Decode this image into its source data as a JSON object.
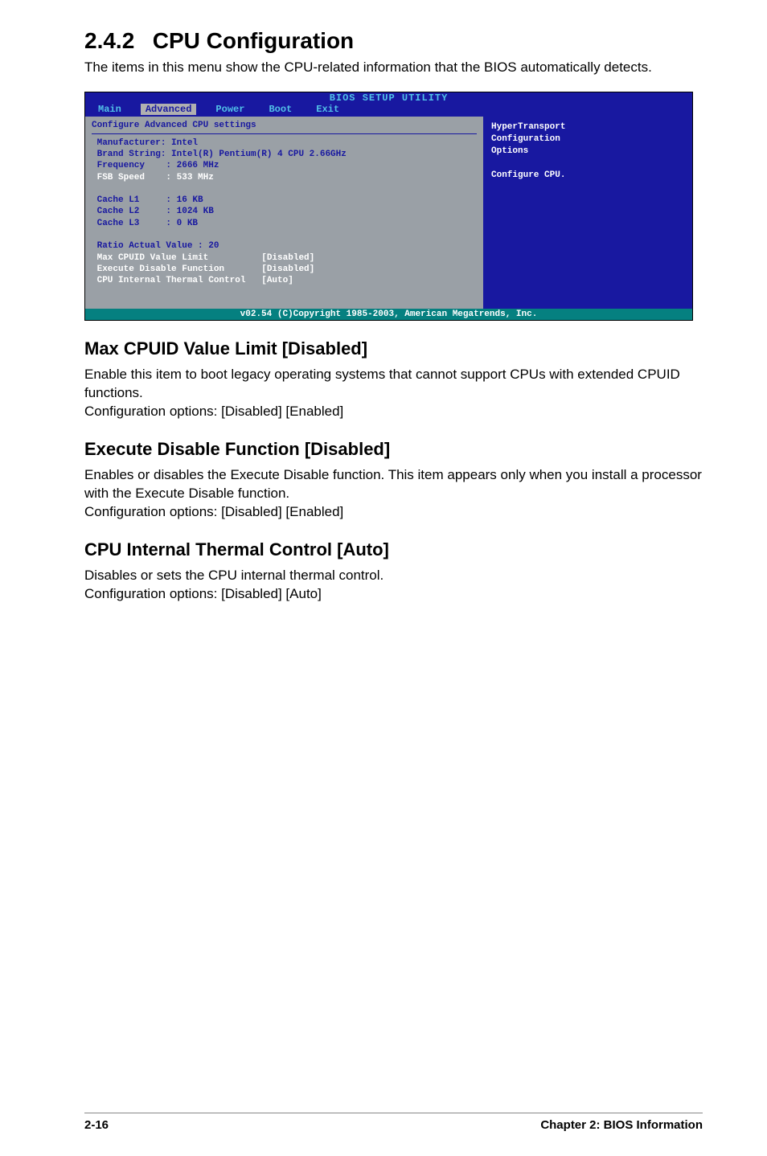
{
  "section": {
    "number": "2.4.2",
    "title": "CPU Configuration",
    "intro": "The items in this menu show the CPU-related information that the BIOS automatically detects."
  },
  "bios": {
    "title": "BIOS SETUP UTILITY",
    "tabs": {
      "main": "Main",
      "advanced": "Advanced",
      "power": "Power",
      "boot": "Boot",
      "exit": "Exit"
    },
    "left": {
      "heading": "Configure Advanced CPU settings",
      "manufacturer": " Manufacturer: Intel",
      "brand": " Brand String: Intel(R) Pentium(R) 4 CPU 2.66GHz",
      "frequency": " Frequency    : 2666 MHz",
      "fsb": " FSB Speed    : 533 MHz",
      "cache_l1": " Cache L1     : 16 KB",
      "cache_l2": " Cache L2     : 1024 KB",
      "cache_l3": " Cache L3     : 0 KB",
      "ratio": " Ratio Actual Value : 20",
      "max_cpuid": " Max CPUID Value Limit          [Disabled]",
      "exec_disable": " Execute Disable Function       [Disabled]",
      "thermal": " CPU Internal Thermal Control   [Auto]"
    },
    "right": {
      "line1": "HyperTransport",
      "line2": "Configuration",
      "line3": "Options",
      "line4": "Configure CPU."
    },
    "footer": "v02.54 (C)Copyright 1985-2003, American Megatrends, Inc."
  },
  "sub1": {
    "heading": "Max CPUID Value Limit [Disabled]",
    "text1": "Enable this item to boot legacy operating systems that cannot support CPUs with extended CPUID functions.",
    "text2": "Configuration options: [Disabled] [Enabled]"
  },
  "sub2": {
    "heading": "Execute Disable Function [Disabled]",
    "text1": "Enables or disables the Execute Disable function. This item appears only when you install a processor with the Execute Disable function.",
    "text2": "Configuration options: [Disabled] [Enabled]"
  },
  "sub3": {
    "heading": "CPU Internal Thermal Control [Auto]",
    "text1": "Disables or sets the CPU internal thermal control.",
    "text2": "Configuration options: [Disabled] [Auto]"
  },
  "footer": {
    "page": "2-16",
    "chapter": "Chapter 2: BIOS Information"
  }
}
